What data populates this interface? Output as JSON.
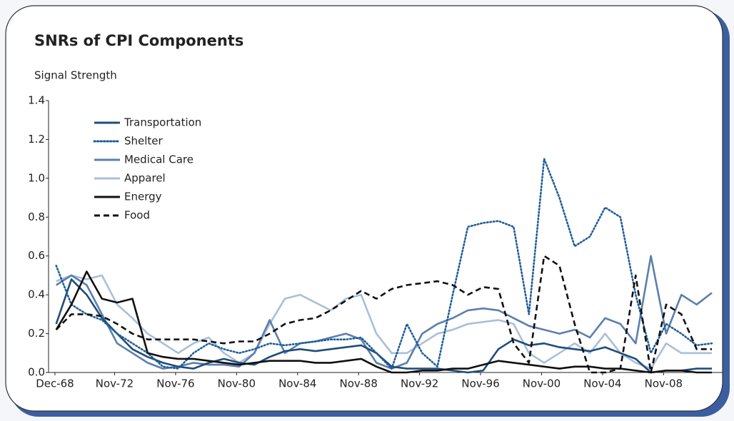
{
  "chart_data": {
    "type": "line",
    "title": "SNRs of CPI Components",
    "y_label": "Signal Strength",
    "x": [
      1969,
      1970,
      1971,
      1972,
      1973,
      1974,
      1975,
      1976,
      1977,
      1978,
      1979,
      1980,
      1981,
      1982,
      1983,
      1984,
      1985,
      1986,
      1987,
      1988,
      1989,
      1990,
      1991,
      1992,
      1993,
      1994,
      1995,
      1996,
      1997,
      1998,
      1999,
      2000,
      2001,
      2002,
      2003,
      2004,
      2005,
      2006,
      2007,
      2008,
      2009,
      2010,
      2011,
      2012
    ],
    "xlim": [
      1968.5,
      2012.7
    ],
    "xticks": [
      {
        "value": 1968.92,
        "label": "Dec-68"
      },
      {
        "value": 1972.83,
        "label": "Nov-72"
      },
      {
        "value": 1976.83,
        "label": "Nov-76"
      },
      {
        "value": 1980.83,
        "label": "Nov-80"
      },
      {
        "value": 1984.83,
        "label": "Nov-84"
      },
      {
        "value": 1988.83,
        "label": "Nov-88"
      },
      {
        "value": 1992.83,
        "label": "Nov-92"
      },
      {
        "value": 1996.83,
        "label": "Nov-96"
      },
      {
        "value": 2000.83,
        "label": "Nov-00"
      },
      {
        "value": 2004.83,
        "label": "Nov-04"
      },
      {
        "value": 2008.83,
        "label": "Nov-08"
      }
    ],
    "ylim": [
      0,
      1.4
    ],
    "yticks": [
      {
        "value": 0,
        "label": "0.0"
      },
      0.2,
      0.4,
      0.6,
      0.8,
      {
        "value": 1,
        "label": "1.0"
      },
      1.2,
      1.4
    ],
    "series": [
      {
        "name": "Transportation",
        "color": "#1f4e79",
        "dash": "solid",
        "values": [
          0.25,
          0.48,
          0.4,
          0.28,
          0.2,
          0.12,
          0.08,
          0.05,
          0.03,
          0.02,
          0.05,
          0.07,
          0.05,
          0.04,
          0.08,
          0.11,
          0.12,
          0.11,
          0.12,
          0.13,
          0.14,
          0.1,
          0.03,
          0.02,
          0.02,
          0.02,
          0.01,
          0.0,
          0.01,
          0.12,
          0.17,
          0.14,
          0.15,
          0.13,
          0.12,
          0.11,
          0.13,
          0.1,
          0.07,
          0.0,
          0.01,
          0.01,
          0.02,
          0.02
        ]
      },
      {
        "name": "Shelter",
        "color": "#1f5c99",
        "dash": "dotted",
        "values": [
          0.55,
          0.35,
          0.3,
          0.27,
          0.2,
          0.15,
          0.1,
          0.03,
          0.02,
          0.1,
          0.15,
          0.12,
          0.1,
          0.12,
          0.15,
          0.14,
          0.15,
          0.16,
          0.17,
          0.17,
          0.18,
          0.1,
          0.02,
          0.25,
          0.1,
          0.03,
          0.4,
          0.75,
          0.77,
          0.78,
          0.75,
          0.3,
          1.1,
          0.9,
          0.65,
          0.7,
          0.85,
          0.8,
          0.4,
          0.1,
          0.25,
          0.2,
          0.14,
          0.15
        ]
      },
      {
        "name": "Medical Care",
        "color": "#5b7fad",
        "dash": "solid",
        "values": [
          0.45,
          0.5,
          0.45,
          0.3,
          0.15,
          0.1,
          0.05,
          0.02,
          0.03,
          0.05,
          0.04,
          0.04,
          0.03,
          0.1,
          0.27,
          0.1,
          0.15,
          0.16,
          0.18,
          0.2,
          0.17,
          0.05,
          0.02,
          0.05,
          0.2,
          0.25,
          0.28,
          0.32,
          0.33,
          0.32,
          0.28,
          0.24,
          0.22,
          0.2,
          0.22,
          0.18,
          0.28,
          0.25,
          0.15,
          0.6,
          0.2,
          0.4,
          0.35,
          0.41
        ]
      },
      {
        "name": "Apparel",
        "color": "#a9bfd9",
        "dash": "solid",
        "values": [
          0.47,
          0.5,
          0.48,
          0.5,
          0.35,
          0.28,
          0.2,
          0.15,
          0.1,
          0.15,
          0.18,
          0.1,
          0.05,
          0.1,
          0.25,
          0.38,
          0.4,
          0.36,
          0.32,
          0.38,
          0.4,
          0.2,
          0.1,
          0.1,
          0.15,
          0.2,
          0.22,
          0.25,
          0.26,
          0.27,
          0.25,
          0.1,
          0.05,
          0.1,
          0.15,
          0.1,
          0.2,
          0.1,
          0.05,
          0.02,
          0.15,
          0.1,
          0.1,
          0.1
        ]
      },
      {
        "name": "Energy",
        "color": "#111111",
        "dash": "solid",
        "values": [
          0.22,
          0.35,
          0.52,
          0.38,
          0.36,
          0.38,
          0.1,
          0.08,
          0.07,
          0.07,
          0.06,
          0.05,
          0.04,
          0.05,
          0.06,
          0.06,
          0.06,
          0.05,
          0.05,
          0.06,
          0.07,
          0.03,
          0.0,
          0.0,
          0.01,
          0.01,
          0.02,
          0.02,
          0.04,
          0.06,
          0.05,
          0.04,
          0.03,
          0.02,
          0.03,
          0.03,
          0.02,
          0.02,
          0.01,
          0.0,
          0.01,
          0.01,
          0.0,
          0.0
        ]
      },
      {
        "name": "Food",
        "color": "#111111",
        "dash": "dashed",
        "values": [
          0.22,
          0.3,
          0.3,
          0.29,
          0.25,
          0.2,
          0.17,
          0.17,
          0.17,
          0.17,
          0.16,
          0.15,
          0.16,
          0.16,
          0.2,
          0.25,
          0.27,
          0.28,
          0.32,
          0.37,
          0.42,
          0.38,
          0.43,
          0.45,
          0.46,
          0.47,
          0.45,
          0.4,
          0.44,
          0.43,
          0.15,
          0.05,
          0.6,
          0.55,
          0.25,
          0.0,
          0.0,
          0.02,
          0.5,
          0.0,
          0.35,
          0.3,
          0.12,
          0.12
        ]
      }
    ]
  }
}
